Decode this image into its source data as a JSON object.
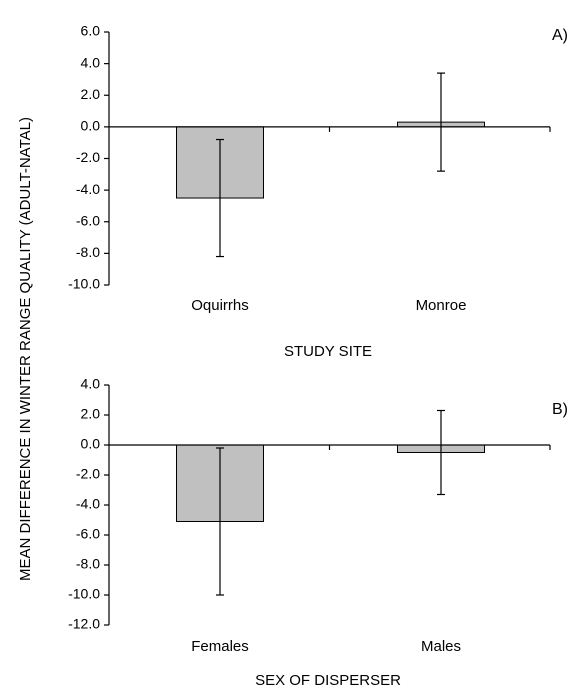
{
  "figure": {
    "ylabel": "MEAN DIFFERENCE IN WINTER RANGE QUALITY (ADULT-NATAL)",
    "bar_color": "#c0c0c0",
    "line_color": "#000000"
  },
  "chart_data": [
    {
      "type": "bar",
      "panel_label": "A)",
      "categories": [
        "Oquirrhs",
        "Monroe"
      ],
      "values": [
        -4.5,
        0.3
      ],
      "error_low": [
        -8.2,
        -2.8
      ],
      "error_high": [
        -0.8,
        3.4
      ],
      "xlabel": "STUDY SITE",
      "ylabel": "MEAN DIFFERENCE IN WINTER RANGE QUALITY (ADULT-NATAL)",
      "ylim": [
        -10.0,
        6.0
      ],
      "yticks": [
        6.0,
        4.0,
        2.0,
        0.0,
        -2.0,
        -4.0,
        -6.0,
        -8.0,
        -10.0
      ],
      "ytick_labels": [
        "6.0",
        "4.0",
        "2.0",
        "0.0",
        "-2.0",
        "-4.0",
        "-6.0",
        "-8.0",
        "-10.0"
      ],
      "grid": false
    },
    {
      "type": "bar",
      "panel_label": "B)",
      "categories": [
        "Females",
        "Males"
      ],
      "values": [
        -5.1,
        -0.5
      ],
      "error_low": [
        -10.0,
        -3.3
      ],
      "error_high": [
        -0.2,
        2.3
      ],
      "xlabel": "SEX OF DISPERSER",
      "ylabel": "MEAN DIFFERENCE IN WINTER RANGE QUALITY (ADULT-NATAL)",
      "ylim": [
        -12.0,
        4.0
      ],
      "yticks": [
        4.0,
        2.0,
        0.0,
        -2.0,
        -4.0,
        -6.0,
        -8.0,
        -10.0,
        -12.0
      ],
      "ytick_labels": [
        "4.0",
        "2.0",
        "0.0",
        "-2.0",
        "-4.0",
        "-6.0",
        "-8.0",
        "-10.0",
        "-12.0"
      ],
      "grid": false
    }
  ]
}
